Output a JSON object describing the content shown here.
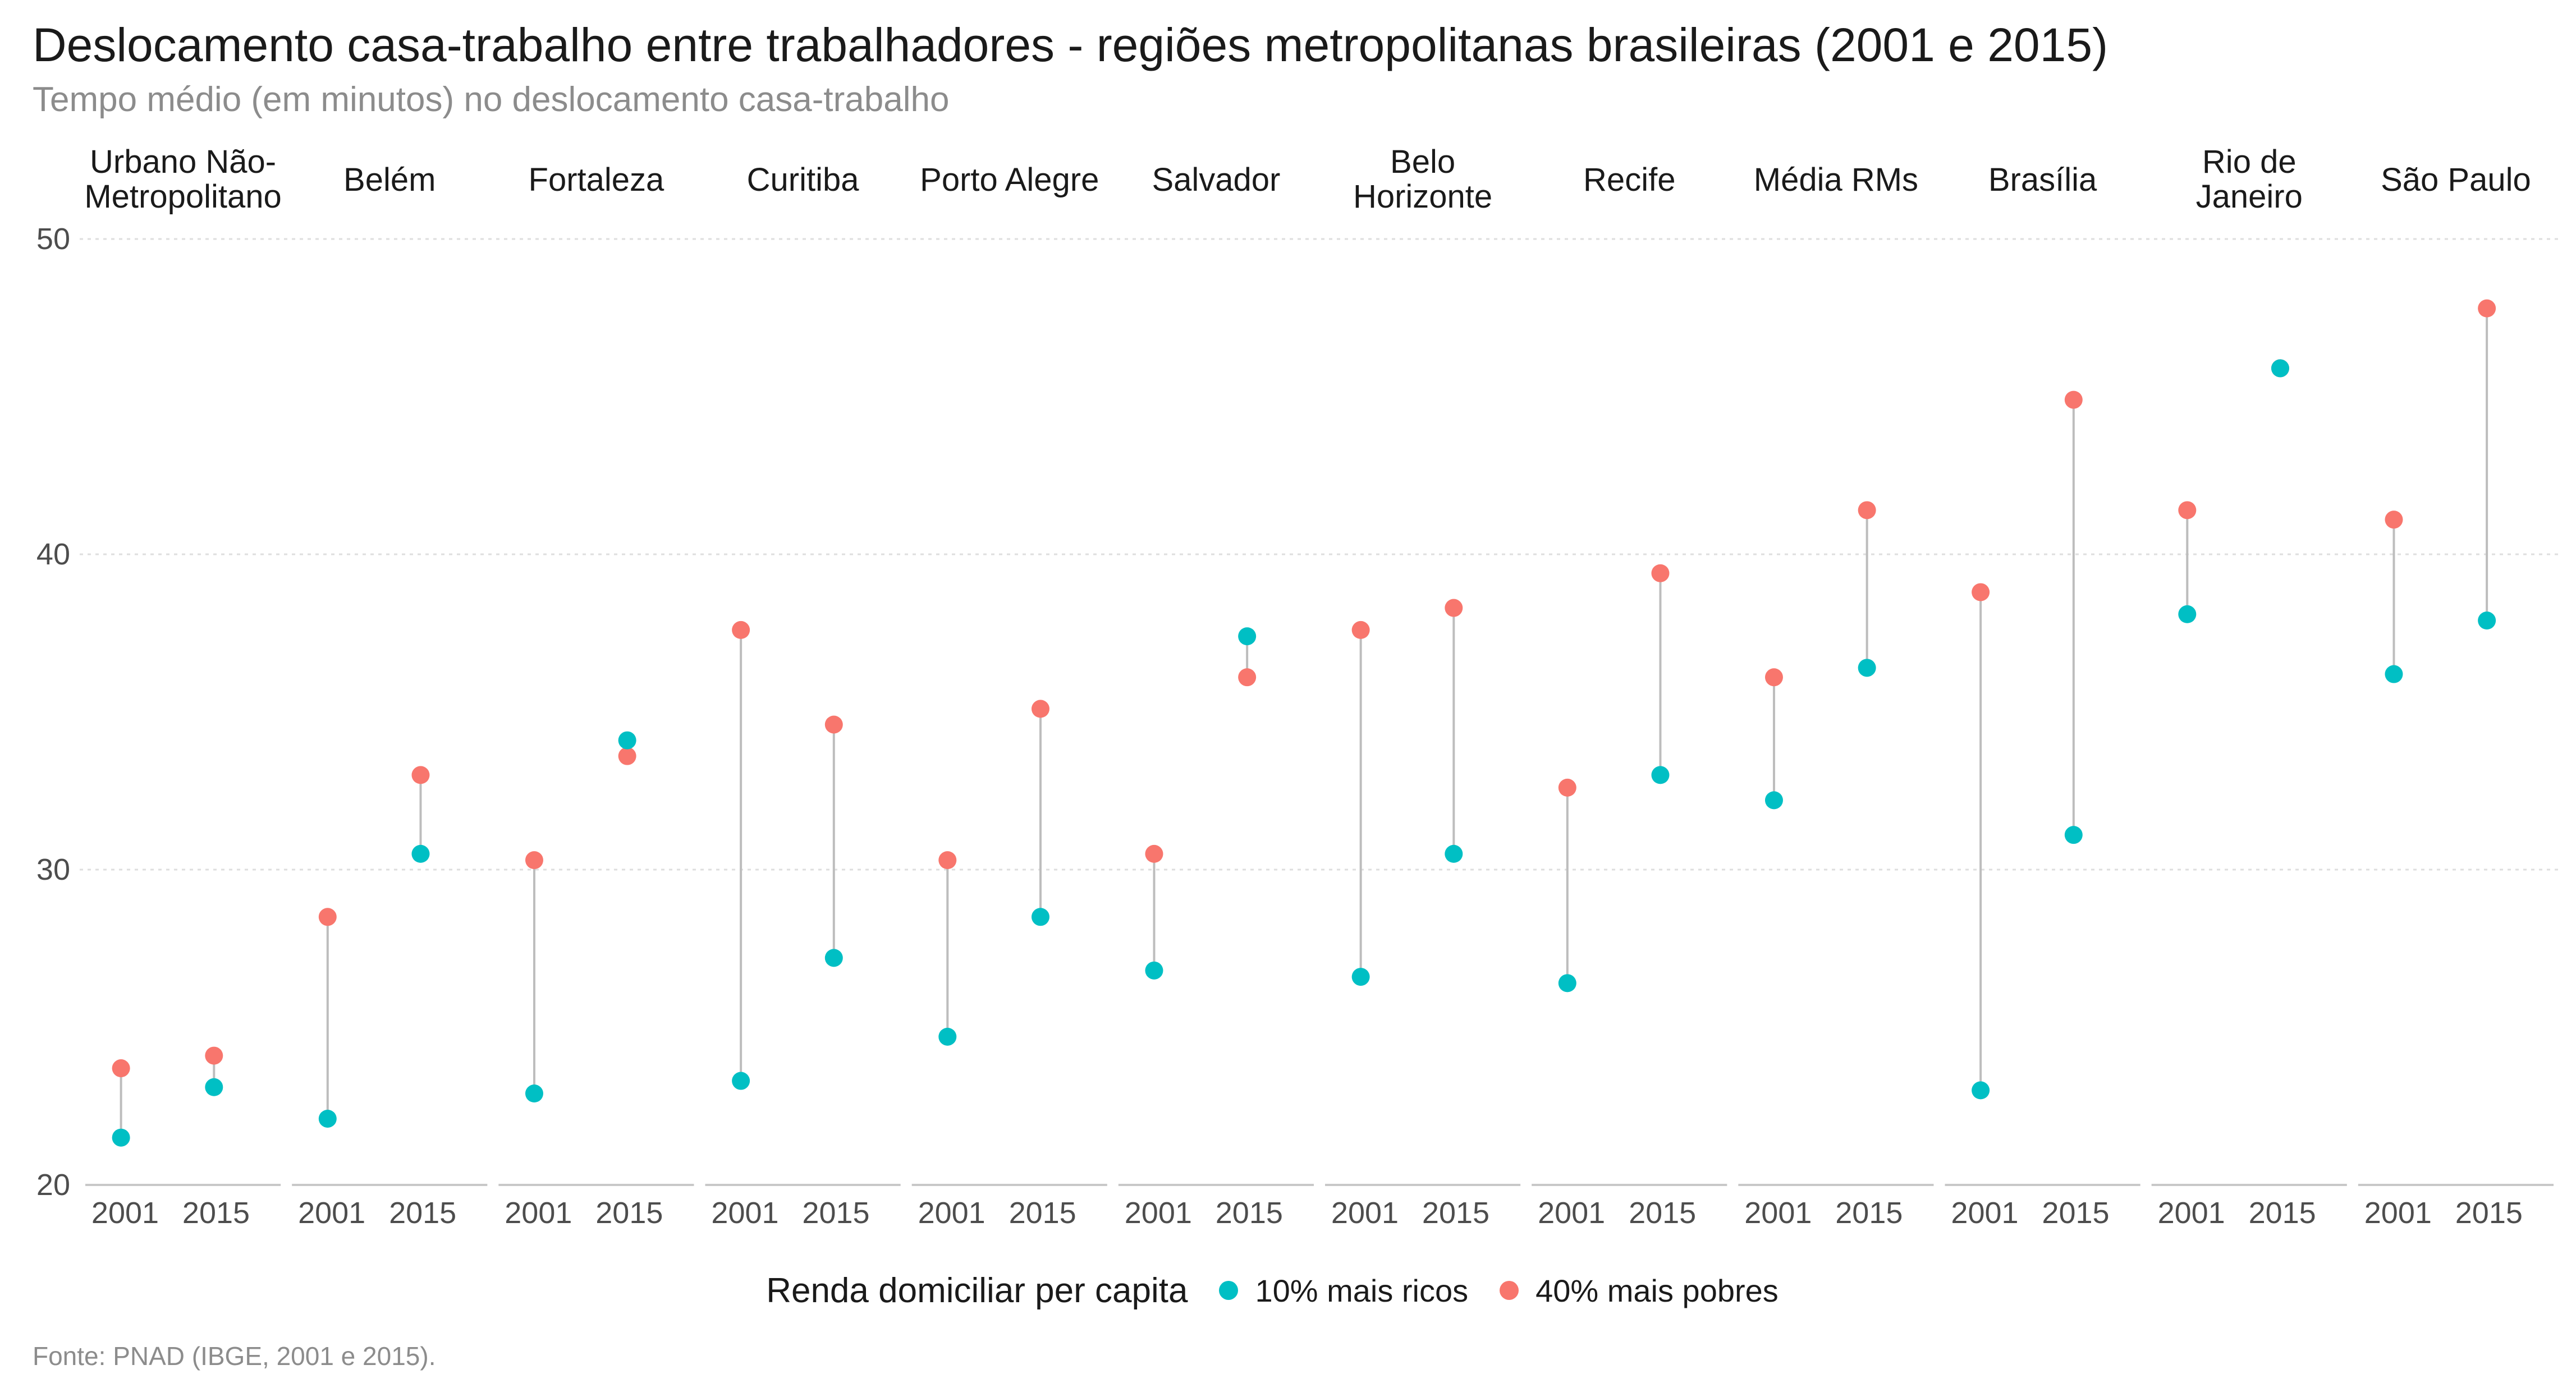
{
  "chart_data": {
    "type": "scatter",
    "title": "Deslocamento casa-trabalho entre trabalhadores - regiões metropolitanas brasileiras (2001 e 2015)",
    "subtitle": "Tempo médio (em minutos) no deslocamento casa-trabalho",
    "caption": "Fonte: PNAD (IBGE, 2001 e 2015).",
    "ylim": [
      20,
      50
    ],
    "yticks": [
      20,
      30,
      40,
      50
    ],
    "x": [
      "2001",
      "2015"
    ],
    "grid": true,
    "legend": {
      "title": "Renda domiciliar per capita",
      "position": "bottom",
      "items": [
        {
          "label": "10% mais ricos",
          "color": "#00BFC4"
        },
        {
          "label": "40% mais pobres",
          "color": "#F8766D"
        }
      ]
    },
    "panels": [
      {
        "label": "Urbano Não-\nMetropolitano",
        "ricos": [
          21.5,
          23.1
        ],
        "pobres": [
          23.7,
          24.1
        ]
      },
      {
        "label": "Belém",
        "ricos": [
          22.1,
          30.5
        ],
        "pobres": [
          28.5,
          33.0
        ]
      },
      {
        "label": "Fortaleza",
        "ricos": [
          22.9,
          34.1
        ],
        "pobres": [
          30.3,
          33.6
        ]
      },
      {
        "label": "Curitiba",
        "ricos": [
          23.3,
          27.2
        ],
        "pobres": [
          37.6,
          34.6
        ]
      },
      {
        "label": "Porto Alegre",
        "ricos": [
          24.7,
          28.5
        ],
        "pobres": [
          30.3,
          35.1
        ]
      },
      {
        "label": "Salvador",
        "ricos": [
          26.8,
          37.4
        ],
        "pobres": [
          30.5,
          36.1
        ]
      },
      {
        "label": "Belo\nHorizonte",
        "ricos": [
          26.6,
          30.5
        ],
        "pobres": [
          37.6,
          38.3
        ]
      },
      {
        "label": "Recife",
        "ricos": [
          26.4,
          33.0
        ],
        "pobres": [
          32.6,
          39.4
        ]
      },
      {
        "label": "Média RMs",
        "ricos": [
          32.2,
          36.4
        ],
        "pobres": [
          36.1,
          41.4
        ]
      },
      {
        "label": "Brasília",
        "ricos": [
          23.0,
          31.1
        ],
        "pobres": [
          38.8,
          44.9
        ]
      },
      {
        "label": "Rio de\nJaneiro",
        "ricos": [
          38.1,
          45.9
        ],
        "pobres": [
          41.4,
          45.9
        ]
      },
      {
        "label": "São Paulo",
        "ricos": [
          36.2,
          37.9
        ],
        "pobres": [
          41.1,
          47.8
        ]
      }
    ]
  }
}
